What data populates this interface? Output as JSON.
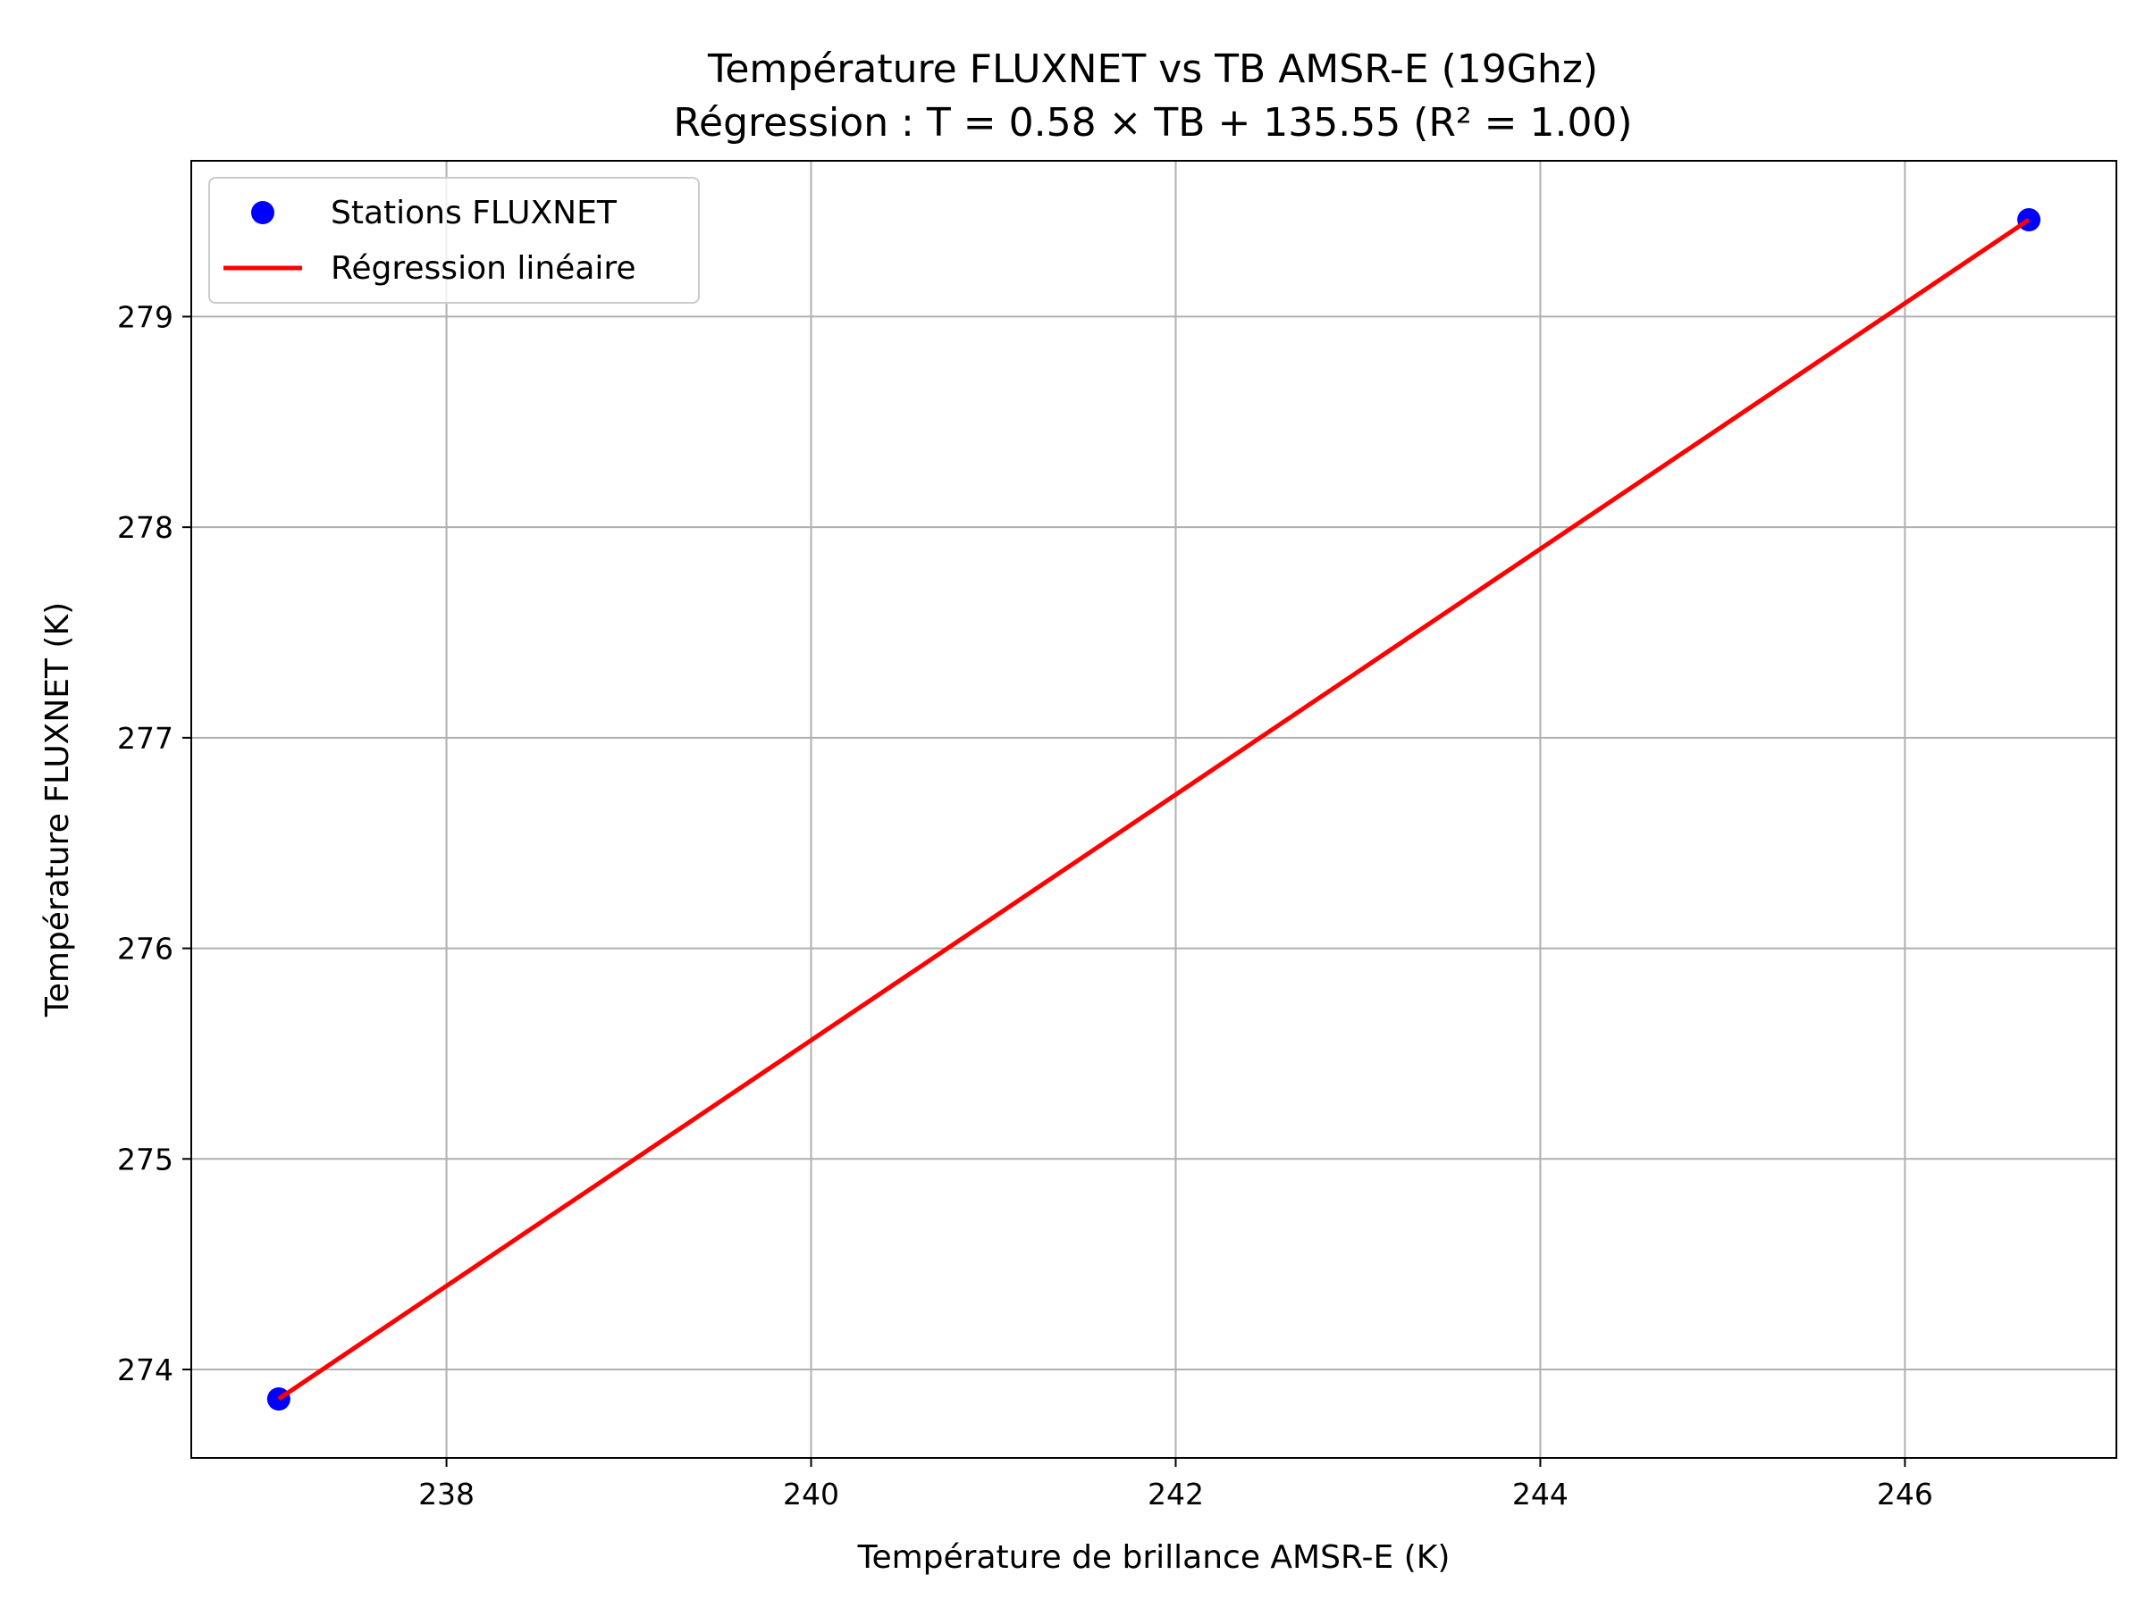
{
  "chart_data": {
    "type": "scatter",
    "title": "Température FLUXNET vs TB AMSR-E (19Ghz)",
    "subtitle": "Régression : T = 0.58 × TB + 135.55 (R² = 1.00)",
    "xlabel": "Température de brillance AMSR-E (K)",
    "ylabel": "Température FLUXNET (K)",
    "xlim": [
      236.6,
      247.16
    ],
    "ylim": [
      273.58,
      279.74
    ],
    "xticks": [
      238,
      240,
      242,
      244,
      246
    ],
    "yticks": [
      274,
      275,
      276,
      277,
      278,
      279
    ],
    "grid": true,
    "legend_position": "top-left",
    "series": [
      {
        "name": "Stations FLUXNET",
        "kind": "scatter",
        "color": "#0000ff",
        "points": [
          {
            "x": 237.08,
            "y": 273.86
          },
          {
            "x": 246.68,
            "y": 279.46
          }
        ]
      },
      {
        "name": "Régression linéaire",
        "kind": "line",
        "color": "#ff0000",
        "points": [
          {
            "x": 237.08,
            "y": 273.86
          },
          {
            "x": 246.68,
            "y": 279.46
          }
        ]
      }
    ]
  }
}
